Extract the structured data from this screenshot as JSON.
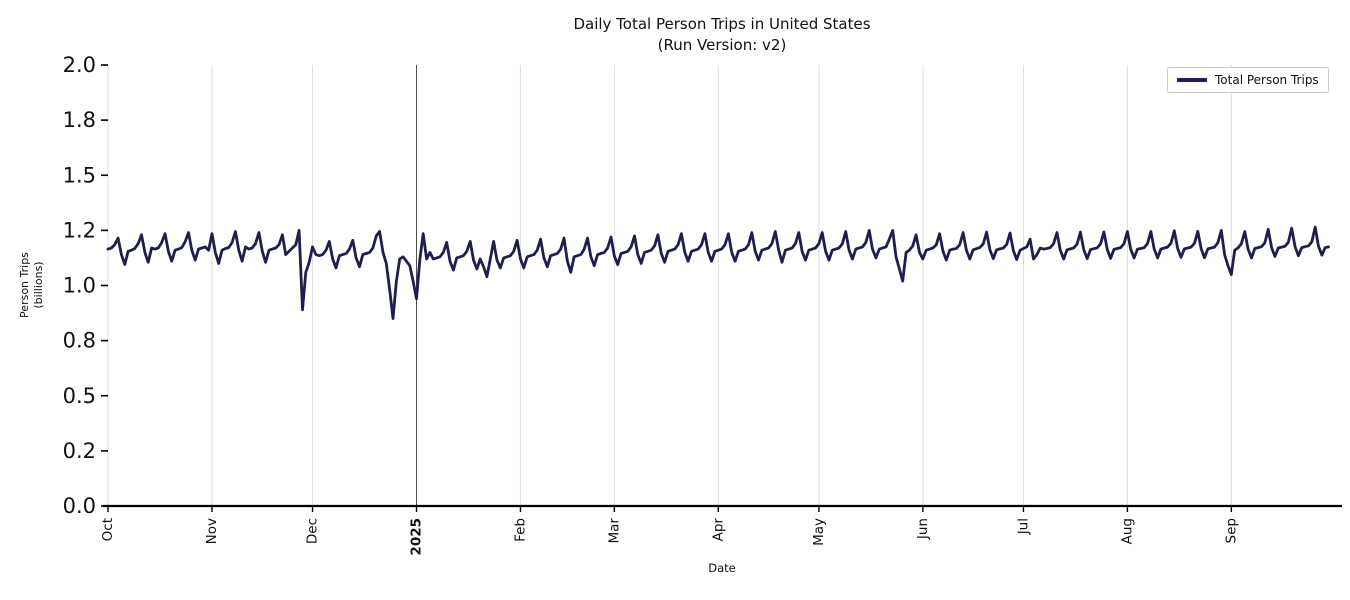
{
  "figure": {
    "title": "Daily Total Person Trips in United States",
    "subtitle": "(Run Version: v2)"
  },
  "legend": {
    "label": "Total Person Trips"
  },
  "colors": {
    "line": "#1f1f4e",
    "grid": "#dcdcdc",
    "year_line": "#4d4d4d",
    "axis": "#000000",
    "text": "#111111",
    "legend_border": "#cccccc"
  },
  "chart_data": {
    "type": "line",
    "title": "Daily Total Person Trips in United States (Run Version: v2)",
    "xlabel": "Date",
    "ylabel": "Person Trips (billions)",
    "ylabel_lines": [
      "Person Trips",
      "(billions)"
    ],
    "ylim": [
      0.0,
      2.0
    ],
    "grid": "vertical-only",
    "legend_position": "upper right",
    "x_start_date": "2024-10-01",
    "x_end_date": "2025-09-30",
    "x_frequency": "daily",
    "yticks": {
      "values": [
        0,
        0.25,
        0.5,
        0.75,
        1.0,
        1.25,
        1.5,
        1.75,
        2.0
      ],
      "labels": [
        "0.0",
        "0.2",
        "0.5",
        "0.8",
        "1.0",
        "1.2",
        "1.5",
        "1.8",
        "2.0"
      ]
    },
    "xticks": [
      {
        "label": "Oct",
        "day": 0,
        "bold": false
      },
      {
        "label": "Nov",
        "day": 31,
        "bold": false
      },
      {
        "label": "Dec",
        "day": 61,
        "bold": false
      },
      {
        "label": "2025",
        "day": 92,
        "bold": true
      },
      {
        "label": "Feb",
        "day": 123,
        "bold": false
      },
      {
        "label": "Mar",
        "day": 151,
        "bold": false
      },
      {
        "label": "Apr",
        "day": 182,
        "bold": false
      },
      {
        "label": "May",
        "day": 212,
        "bold": false
      },
      {
        "label": "Jun",
        "day": 243,
        "bold": false
      },
      {
        "label": "Jul",
        "day": 273,
        "bold": false
      },
      {
        "label": "Aug",
        "day": 304,
        "bold": false
      },
      {
        "label": "Sep",
        "day": 335,
        "bold": false
      }
    ],
    "series": [
      {
        "name": "Total Person Trips",
        "color": "#1f1f4e",
        "values": [
          1.165,
          1.17,
          1.185,
          1.215,
          1.14,
          1.095,
          1.155,
          1.16,
          1.168,
          1.19,
          1.23,
          1.15,
          1.105,
          1.17,
          1.165,
          1.17,
          1.195,
          1.235,
          1.155,
          1.11,
          1.16,
          1.165,
          1.172,
          1.198,
          1.24,
          1.16,
          1.115,
          1.165,
          1.17,
          1.175,
          1.16,
          1.235,
          1.15,
          1.1,
          1.16,
          1.168,
          1.172,
          1.195,
          1.245,
          1.16,
          1.11,
          1.175,
          1.165,
          1.17,
          1.19,
          1.24,
          1.155,
          1.105,
          1.16,
          1.165,
          1.17,
          1.185,
          1.23,
          1.14,
          1.155,
          1.17,
          1.185,
          1.25,
          0.89,
          1.06,
          1.105,
          1.175,
          1.14,
          1.135,
          1.14,
          1.16,
          1.2,
          1.12,
          1.08,
          1.135,
          1.14,
          1.145,
          1.165,
          1.205,
          1.125,
          1.085,
          1.14,
          1.145,
          1.15,
          1.17,
          1.225,
          1.245,
          1.15,
          1.1,
          0.98,
          0.85,
          1.02,
          1.12,
          1.13,
          1.11,
          1.09,
          1.02,
          0.94,
          1.12,
          1.235,
          1.12,
          1.15,
          1.12,
          1.125,
          1.13,
          1.15,
          1.195,
          1.11,
          1.07,
          1.125,
          1.13,
          1.135,
          1.155,
          1.2,
          1.115,
          1.075,
          1.12,
          1.085,
          1.04,
          1.12,
          1.2,
          1.115,
          1.08,
          1.125,
          1.13,
          1.135,
          1.155,
          1.205,
          1.12,
          1.08,
          1.13,
          1.135,
          1.14,
          1.16,
          1.21,
          1.125,
          1.085,
          1.135,
          1.14,
          1.145,
          1.165,
          1.215,
          1.11,
          1.06,
          1.13,
          1.135,
          1.14,
          1.165,
          1.215,
          1.13,
          1.09,
          1.14,
          1.145,
          1.15,
          1.17,
          1.22,
          1.135,
          1.095,
          1.145,
          1.15,
          1.155,
          1.175,
          1.225,
          1.14,
          1.1,
          1.15,
          1.155,
          1.16,
          1.18,
          1.23,
          1.145,
          1.105,
          1.155,
          1.16,
          1.165,
          1.185,
          1.235,
          1.15,
          1.11,
          1.155,
          1.16,
          1.165,
          1.185,
          1.235,
          1.15,
          1.11,
          1.155,
          1.16,
          1.165,
          1.185,
          1.235,
          1.15,
          1.11,
          1.155,
          1.16,
          1.165,
          1.185,
          1.24,
          1.155,
          1.115,
          1.16,
          1.165,
          1.17,
          1.19,
          1.245,
          1.16,
          1.105,
          1.16,
          1.165,
          1.17,
          1.19,
          1.24,
          1.155,
          1.115,
          1.16,
          1.165,
          1.17,
          1.19,
          1.24,
          1.155,
          1.115,
          1.16,
          1.165,
          1.17,
          1.19,
          1.245,
          1.16,
          1.12,
          1.165,
          1.17,
          1.175,
          1.195,
          1.25,
          1.165,
          1.125,
          1.165,
          1.17,
          1.175,
          1.21,
          1.25,
          1.13,
          1.075,
          1.02,
          1.15,
          1.16,
          1.18,
          1.23,
          1.15,
          1.12,
          1.16,
          1.165,
          1.17,
          1.185,
          1.235,
          1.155,
          1.115,
          1.16,
          1.165,
          1.168,
          1.185,
          1.24,
          1.16,
          1.12,
          1.162,
          1.167,
          1.172,
          1.188,
          1.242,
          1.162,
          1.122,
          1.162,
          1.166,
          1.17,
          1.186,
          1.238,
          1.158,
          1.118,
          1.16,
          1.168,
          1.175,
          1.21,
          1.12,
          1.14,
          1.17,
          1.165,
          1.168,
          1.172,
          1.19,
          1.24,
          1.16,
          1.12,
          1.162,
          1.166,
          1.17,
          1.188,
          1.242,
          1.162,
          1.122,
          1.163,
          1.167,
          1.171,
          1.189,
          1.243,
          1.163,
          1.123,
          1.164,
          1.168,
          1.172,
          1.19,
          1.245,
          1.165,
          1.125,
          1.165,
          1.168,
          1.172,
          1.19,
          1.245,
          1.165,
          1.125,
          1.165,
          1.17,
          1.174,
          1.192,
          1.248,
          1.168,
          1.128,
          1.166,
          1.17,
          1.174,
          1.192,
          1.246,
          1.166,
          1.126,
          1.166,
          1.17,
          1.174,
          1.195,
          1.25,
          1.14,
          1.09,
          1.05,
          1.16,
          1.17,
          1.19,
          1.245,
          1.165,
          1.125,
          1.168,
          1.172,
          1.176,
          1.194,
          1.255,
          1.172,
          1.132,
          1.17,
          1.174,
          1.178,
          1.196,
          1.26,
          1.175,
          1.135,
          1.172,
          1.176,
          1.18,
          1.198,
          1.265,
          1.178,
          1.138,
          1.172,
          1.175
        ]
      }
    ]
  }
}
